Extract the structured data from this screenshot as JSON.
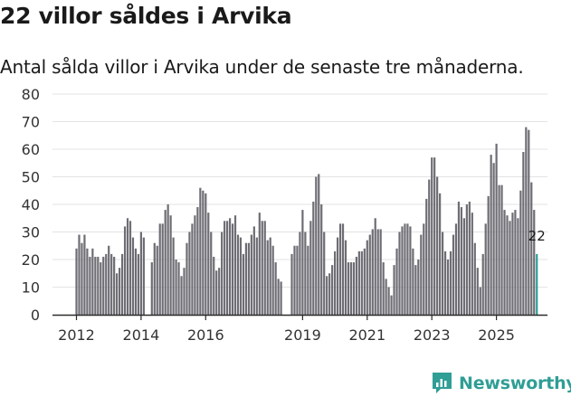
{
  "title": "22 villor såldes i Arvika",
  "subtitle": "Antal sålda villor i Arvika under de senaste tre månaderna.",
  "brand": "Newsworthy",
  "chart_data": {
    "type": "bar",
    "title": "22 villor såldes i Arvika",
    "subtitle": "Antal sålda villor i Arvika under de senaste tre månaderna.",
    "xlabel": "",
    "ylabel": "",
    "ylim": [
      0,
      80
    ],
    "yticks": [
      0,
      10,
      20,
      30,
      40,
      50,
      60,
      70,
      80
    ],
    "start": {
      "year": 2012,
      "month": 1
    },
    "xticks": [
      {
        "year": 2012,
        "label": "2012"
      },
      {
        "year": 2014,
        "label": "2014"
      },
      {
        "year": 2016,
        "label": "2016"
      },
      {
        "year": 2019,
        "label": "2019"
      },
      {
        "year": 2021,
        "label": "2021"
      },
      {
        "year": 2023,
        "label": "2023"
      },
      {
        "year": 2025,
        "label": "2025"
      }
    ],
    "values": [
      24,
      29,
      26,
      29,
      24,
      21,
      24,
      21,
      21,
      19,
      21,
      22,
      25,
      22,
      21,
      15,
      17,
      22,
      32,
      35,
      34,
      28,
      24,
      22,
      30,
      28,
      null,
      null,
      19,
      26,
      25,
      33,
      33,
      38,
      40,
      36,
      28,
      20,
      19,
      14,
      17,
      26,
      30,
      33,
      36,
      39,
      46,
      45,
      44,
      37,
      30,
      21,
      16,
      17,
      30,
      34,
      34,
      35,
      33,
      36,
      29,
      28,
      22,
      26,
      26,
      29,
      32,
      28,
      37,
      34,
      34,
      27,
      28,
      25,
      19,
      13,
      12,
      null,
      null,
      null,
      22,
      25,
      25,
      30,
      38,
      30,
      25,
      34,
      41,
      50,
      51,
      40,
      30,
      14,
      15,
      18,
      23,
      28,
      33,
      33,
      27,
      19,
      19,
      19,
      21,
      23,
      23,
      24,
      27,
      29,
      31,
      35,
      31,
      31,
      19,
      13,
      10,
      7,
      18,
      24,
      30,
      32,
      33,
      33,
      32,
      24,
      18,
      20,
      29,
      33,
      42,
      49,
      57,
      57,
      50,
      44,
      30,
      23,
      20,
      23,
      29,
      33,
      41,
      39,
      35,
      40,
      41,
      37,
      26,
      17,
      10,
      22,
      33,
      43,
      58,
      55,
      62,
      47,
      47,
      38,
      36,
      34,
      37,
      38,
      35,
      45,
      59,
      68,
      67,
      48,
      38,
      22
    ],
    "highlight_value": 22,
    "highlight_label": "22",
    "colors": {
      "bar": "#6e6d74",
      "highlight": "#2f9e95",
      "axis": "#2b2b2b",
      "brand": "#2f9e95"
    }
  }
}
